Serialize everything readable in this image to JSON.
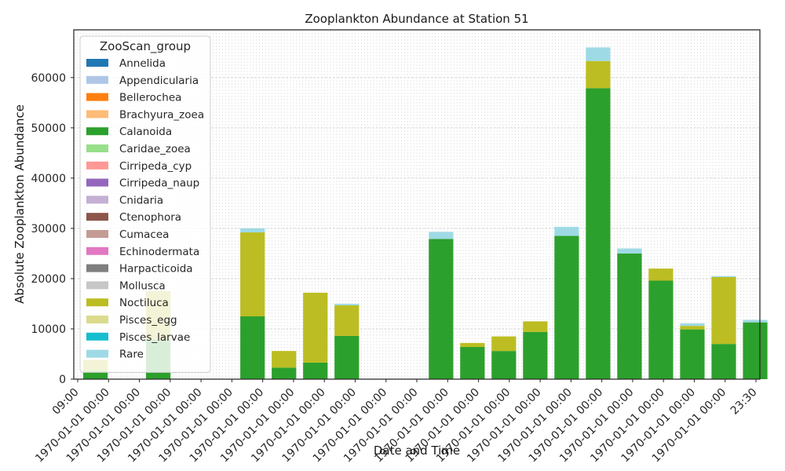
{
  "chart_data": {
    "type": "bar",
    "title": "Zooplankton Abundance at Station 51",
    "xlabel": "Date and Time",
    "ylabel": "Absolute Zooplankton Abundance",
    "ylim": [
      0,
      69500
    ],
    "yticks": [
      0,
      10000,
      20000,
      30000,
      40000,
      50000,
      60000
    ],
    "ytick_labels": [
      "0",
      "10000",
      "20000",
      "30000",
      "40000",
      "50000",
      "60000"
    ],
    "stacked": true,
    "grid": true,
    "legend_title": "ZooScan_group",
    "legend_position": "upper left",
    "categories": [
      "1",
      "2",
      "3",
      "4",
      "5",
      "6",
      "7",
      "8",
      "9",
      "10",
      "11",
      "12",
      "13",
      "14",
      "15",
      "16",
      "17",
      "18",
      "19",
      "20",
      "21",
      "22"
    ],
    "x_tick_labels": [
      "09:00",
      "1970-01-01 00:00",
      "1970-01-01 00:00",
      "1970-01-01 00:00",
      "1970-01-01 00:00",
      "1970-01-01 00:00",
      "1970-01-01 00:00",
      "1970-01-01 00:00",
      "1970-01-01 00:00",
      "1970-01-01 00:00",
      "1970-01-01 00:00",
      "1970-01-01 00:00",
      "1970-01-01 00:00",
      "1970-01-01 00:00",
      "1970-01-01 00:00",
      "1970-01-01 00:00",
      "1970-01-01 00:00",
      "1970-01-01 00:00",
      "1970-01-01 00:00",
      "1970-01-01 00:00",
      "1970-01-01 00:00",
      "1970-01-01 00:00",
      "23:30"
    ],
    "series": [
      {
        "name": "Annelida",
        "color": "#1f77b4",
        "values": [
          0,
          0,
          0,
          0,
          0,
          0,
          0,
          0,
          0,
          0,
          0,
          0,
          0,
          0,
          0,
          0,
          0,
          0,
          0,
          0,
          0,
          0
        ]
      },
      {
        "name": "Appendicularia",
        "color": "#aec7e8",
        "values": [
          0,
          0,
          0,
          0,
          0,
          0,
          0,
          0,
          0,
          0,
          0,
          0,
          0,
          0,
          0,
          0,
          0,
          0,
          0,
          0,
          0,
          0
        ]
      },
      {
        "name": "Bellerochea",
        "color": "#ff7f0e",
        "values": [
          0,
          0,
          0,
          0,
          0,
          0,
          0,
          0,
          0,
          0,
          0,
          0,
          0,
          0,
          0,
          0,
          0,
          0,
          0,
          0,
          0,
          0
        ]
      },
      {
        "name": "Brachyura_zoea",
        "color": "#ffbb78",
        "values": [
          0,
          0,
          0,
          0,
          0,
          0,
          0,
          0,
          0,
          0,
          0,
          0,
          0,
          0,
          0,
          0,
          0,
          0,
          0,
          0,
          0,
          0
        ]
      },
      {
        "name": "Calanoida",
        "color": "#2ca02c",
        "values": [
          1600,
          0,
          7800,
          0,
          0,
          12500,
          2300,
          3300,
          8600,
          0,
          0,
          27900,
          6400,
          5600,
          9400,
          28500,
          57900,
          25000,
          19600,
          9900,
          7000,
          11300
        ]
      },
      {
        "name": "Caridae_zoea",
        "color": "#98df8a",
        "values": [
          0,
          0,
          0,
          0,
          0,
          0,
          0,
          0,
          0,
          0,
          0,
          0,
          0,
          0,
          0,
          0,
          0,
          0,
          0,
          0,
          0,
          0
        ]
      },
      {
        "name": "Cirripeda_cyp",
        "color": "#ff9896",
        "values": [
          0,
          0,
          0,
          0,
          0,
          0,
          0,
          0,
          0,
          0,
          0,
          0,
          0,
          0,
          0,
          0,
          0,
          0,
          0,
          0,
          0,
          0
        ]
      },
      {
        "name": "Cirripeda_naup",
        "color": "#9467bd",
        "values": [
          0,
          0,
          0,
          0,
          0,
          0,
          0,
          0,
          0,
          0,
          0,
          0,
          0,
          0,
          0,
          0,
          0,
          0,
          0,
          0,
          0,
          0
        ]
      },
      {
        "name": "Cnidaria",
        "color": "#c5b0d5",
        "values": [
          0,
          0,
          0,
          0,
          0,
          0,
          0,
          0,
          0,
          0,
          0,
          0,
          0,
          0,
          0,
          0,
          0,
          0,
          0,
          0,
          0,
          0
        ]
      },
      {
        "name": "Ctenophora",
        "color": "#8c564b",
        "values": [
          0,
          0,
          0,
          0,
          0,
          0,
          0,
          0,
          0,
          0,
          0,
          0,
          0,
          0,
          0,
          0,
          0,
          0,
          0,
          0,
          0,
          0
        ]
      },
      {
        "name": "Cumacea",
        "color": "#c49c94",
        "values": [
          0,
          0,
          0,
          0,
          0,
          0,
          0,
          0,
          0,
          0,
          0,
          0,
          0,
          0,
          0,
          0,
          0,
          0,
          0,
          0,
          0,
          0
        ]
      },
      {
        "name": "Echinodermata",
        "color": "#e377c2",
        "values": [
          0,
          0,
          0,
          0,
          0,
          0,
          0,
          0,
          0,
          0,
          0,
          0,
          0,
          0,
          0,
          0,
          0,
          0,
          0,
          0,
          0,
          0
        ]
      },
      {
        "name": "Harpacticoida",
        "color": "#7f7f7f",
        "values": [
          0,
          0,
          0,
          0,
          0,
          0,
          0,
          0,
          0,
          0,
          0,
          0,
          0,
          0,
          0,
          0,
          0,
          0,
          0,
          0,
          0,
          0
        ]
      },
      {
        "name": "Mollusca",
        "color": "#c7c7c7",
        "values": [
          0,
          0,
          0,
          0,
          0,
          0,
          0,
          0,
          0,
          0,
          0,
          0,
          0,
          0,
          0,
          0,
          0,
          0,
          0,
          0,
          0,
          0
        ]
      },
      {
        "name": "Noctiluca",
        "color": "#bcbd22",
        "values": [
          2200,
          0,
          9700,
          0,
          0,
          16700,
          3300,
          13900,
          6100,
          0,
          0,
          0,
          800,
          2900,
          2100,
          0,
          5400,
          0,
          2400,
          700,
          13300,
          0
        ]
      },
      {
        "name": "Pisces_egg",
        "color": "#dbdb8d",
        "values": [
          0,
          0,
          0,
          0,
          0,
          0,
          0,
          0,
          0,
          0,
          0,
          0,
          0,
          0,
          0,
          0,
          0,
          0,
          0,
          0,
          0,
          0
        ]
      },
      {
        "name": "Pisces_larvae",
        "color": "#17becf",
        "values": [
          0,
          0,
          0,
          0,
          0,
          0,
          0,
          0,
          0,
          0,
          0,
          0,
          0,
          0,
          0,
          0,
          0,
          0,
          0,
          0,
          0,
          0
        ]
      },
      {
        "name": "Rare",
        "color": "#9edae5",
        "values": [
          0,
          0,
          0,
          0,
          0,
          800,
          0,
          0,
          300,
          0,
          0,
          1400,
          0,
          0,
          0,
          1800,
          2700,
          1000,
          0,
          500,
          200,
          500
        ]
      }
    ]
  }
}
